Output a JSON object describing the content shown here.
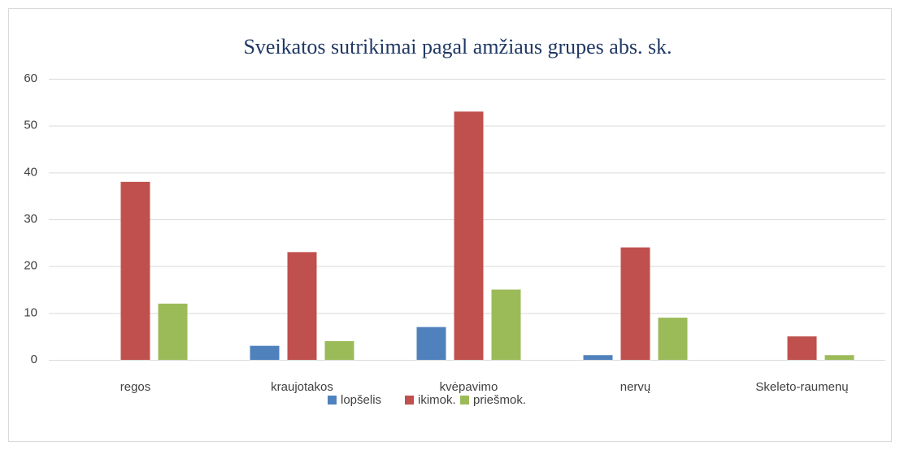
{
  "chart_data": {
    "type": "bar",
    "title": "Sveikatos sutrikimai pagal amžiaus grupes abs. sk.",
    "categories": [
      "regos",
      "kraujotakos",
      "kvėpavimo",
      "nervų",
      "Skeleto-raumenų"
    ],
    "series": [
      {
        "name": "lopšelis",
        "color": "#4f81bd",
        "values": [
          0,
          3,
          7,
          1,
          0
        ]
      },
      {
        "name": "ikimok.",
        "color": "#c0504d",
        "values": [
          38,
          23,
          53,
          24,
          5
        ]
      },
      {
        "name": "priešmok.",
        "color": "#9bbb59",
        "values": [
          12,
          4,
          15,
          9,
          1
        ]
      }
    ],
    "ylim": [
      0,
      60
    ],
    "yticks": [
      0,
      10,
      20,
      30,
      40,
      50,
      60
    ],
    "grid": true,
    "legend": "bottom"
  }
}
